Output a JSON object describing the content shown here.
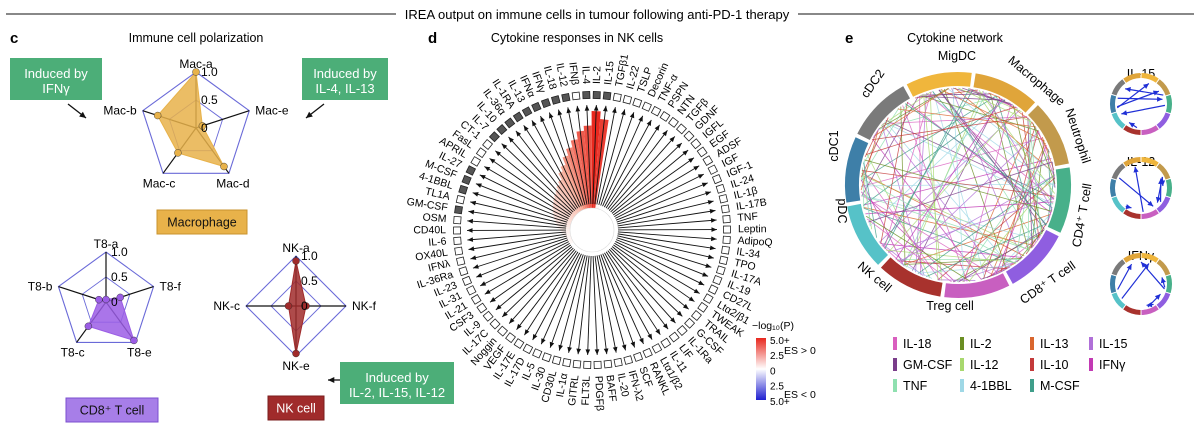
{
  "header": {
    "title": "IREA output on immune cells in tumour following anti-PD-1 therapy"
  },
  "panel_c": {
    "letter": "c",
    "title": "Immune cell polarization",
    "ticks": [
      "0",
      "0.5",
      "1.0"
    ],
    "macrophage": {
      "label": "Macrophage",
      "axes": [
        "Mac-a",
        "Mac-e",
        "Mac-d",
        "Mac-c",
        "Mac-b"
      ],
      "values": [
        1.0,
        0.12,
        0.85,
        0.55,
        0.72
      ],
      "color": "#e8b24a",
      "callout_left": "Induced by\nIFNγ",
      "callout_right": "Induced by\nIL-4, IL-13"
    },
    "t8": {
      "label": "CD8⁺ T cell",
      "axes": [
        "T8-a",
        "T8-f",
        "T8-e",
        "T8-c",
        "T8-b"
      ],
      "values": [
        0.05,
        0.3,
        0.95,
        0.6,
        0.15
      ],
      "color": "#9b5de5"
    },
    "nk": {
      "label": "NK cell",
      "axes": [
        "NK-a",
        "NK-f",
        "NK-e",
        "NK-c"
      ],
      "values": [
        0.9,
        0.2,
        0.95,
        0.15
      ],
      "color": "#a02b2b",
      "callout": "Induced by\nIL-2, IL-15, IL-12"
    },
    "callout_color": "#4cae78"
  },
  "panel_d": {
    "letter": "d",
    "title": "Cytokine responses in NK cells",
    "cytokines": [
      "IL-2",
      "IL-15",
      "TGFβ1",
      "IL-22",
      "TSLP",
      "Decorin",
      "TNF-α",
      "PSPN",
      "NTN",
      "TGFβ",
      "GDNF",
      "IGFL",
      "EGF",
      "ADSF",
      "IGF",
      "IGF-1",
      "IL-24",
      "IL-1β",
      "IL-17B",
      "TNF",
      "Leptin",
      "AdipoQ",
      "IL-34",
      "TPO",
      "IL-17A",
      "IL-19",
      "CD27L",
      "Ltα2/β1",
      "TWEAK",
      "TRAIL",
      "G-CSF",
      "IL-1Ra",
      "LIF",
      "IL-11",
      "Ltα1/β2",
      "RANKL",
      "SCF",
      "IFN-λ2",
      "IL-20",
      "BAFF",
      "PDGFβ",
      "FLT3L",
      "GITRL",
      "IL-1α",
      "CD30L",
      "IL-30",
      "IL-5",
      "IL-17D",
      "IL-17E",
      "VEGF",
      "Noggin",
      "IL-17C",
      "IL-9",
      "CSF3",
      "IL-21",
      "IL-31",
      "IL-23",
      "IL-36Ra",
      "IFNλ",
      "OX40L",
      "IL-6",
      "CD40L",
      "OSM",
      "GM-CSF",
      "TL1A",
      "4-1BBL",
      "M-CSF",
      "IL-27",
      "APRIL",
      "FasL",
      "CT-1",
      "IL-7",
      "IL-10",
      "IL-36α",
      "IL-1RA",
      "IL-13",
      "IFNα",
      "IFNγ",
      "IL-18",
      "IL-12",
      "IFNβ",
      "IL-4"
    ],
    "values": [
      1.0,
      0.92,
      0.05,
      0.04,
      0.03,
      0.03,
      0.02,
      0.02,
      0.02,
      0.02,
      0.02,
      0.02,
      0.02,
      0.02,
      0.02,
      0.02,
      0.02,
      0.02,
      0.02,
      0.02,
      0.02,
      0.02,
      0.02,
      0.02,
      0.02,
      0.02,
      0.02,
      0.02,
      0.02,
      0.02,
      0.02,
      0.02,
      0.02,
      0.02,
      0.02,
      0.02,
      0.02,
      0.02,
      0.02,
      0.02,
      0.02,
      0.02,
      0.02,
      0.02,
      0.02,
      0.02,
      0.02,
      0.02,
      0.02,
      0.02,
      0.02,
      0.03,
      0.03,
      0.03,
      0.04,
      0.05,
      0.06,
      0.06,
      0.07,
      0.08,
      0.09,
      0.1,
      0.12,
      0.14,
      0.16,
      0.18,
      0.2,
      0.22,
      0.24,
      0.26,
      0.28,
      0.3,
      0.32,
      0.35,
      0.38,
      0.45,
      0.5,
      0.58,
      0.65,
      0.72,
      0.8,
      0.85
    ],
    "legend_title": "−log₁₀(P)",
    "legend_ticks": [
      "5.0+",
      "2.5",
      "0",
      "2.5",
      "5.0+"
    ],
    "legend_pos": "ES > 0",
    "legend_neg": "ES < 0"
  },
  "panel_e": {
    "letter": "e",
    "title": "Cytokine network",
    "cells": [
      {
        "name": "MigDC",
        "color": "#f0b63c"
      },
      {
        "name": "Macrophage",
        "color": "#e0a53a"
      },
      {
        "name": "Neutrophil",
        "color": "#c29a4c"
      },
      {
        "name": "CD4⁺ T cell",
        "color": "#48b08a"
      },
      {
        "name": "CD8⁺ T cell",
        "color": "#8f5ee0"
      },
      {
        "name": "Treg cell",
        "color": "#c85fc0"
      },
      {
        "name": "NK cell",
        "color": "#a8322d"
      },
      {
        "name": "pDC",
        "color": "#56c2c8"
      },
      {
        "name": "cDC1",
        "color": "#3e7fa8"
      },
      {
        "name": "cDC2",
        "color": "#7a7a7a"
      }
    ],
    "legend": [
      {
        "label": "IL-18",
        "color": "#d95fbf"
      },
      {
        "label": "IL-2",
        "color": "#6b8e23"
      },
      {
        "label": "IL-13",
        "color": "#d9662e"
      },
      {
        "label": "IL-15",
        "color": "#b070d8"
      },
      {
        "label": "GM-CSF",
        "color": "#7a3d8a"
      },
      {
        "label": "IL-12",
        "color": "#a8d86e"
      },
      {
        "label": "IL-10",
        "color": "#c43a3a"
      },
      {
        "label": "IFNγ",
        "color": "#c23ab4"
      },
      {
        "label": "TNF",
        "color": "#8fe0b0"
      },
      {
        "label": "4-1BBL",
        "color": "#9fd8e6"
      },
      {
        "label": "M-CSF",
        "color": "#3f9e8a"
      }
    ],
    "mini": [
      {
        "title": "IL-15"
      },
      {
        "title": "IL-12"
      },
      {
        "title": "IFNγ"
      }
    ]
  }
}
